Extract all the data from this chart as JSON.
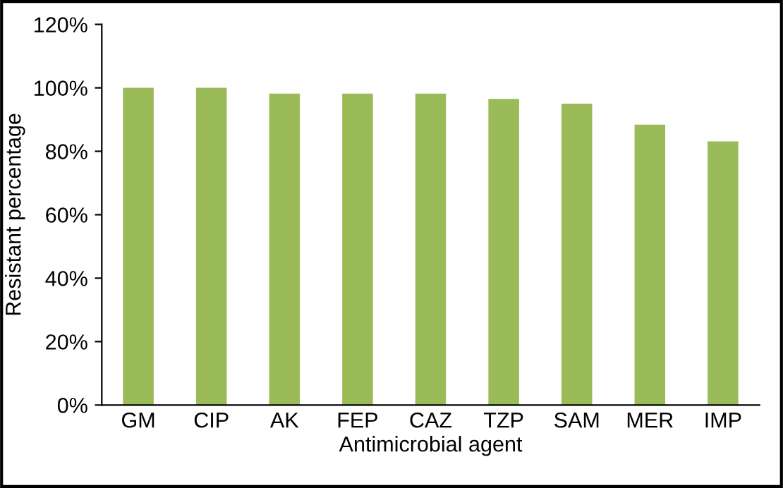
{
  "chart_data": {
    "type": "bar",
    "xlabel": "Antimicrobial agent",
    "ylabel": "Resistant percentage",
    "categories": [
      "GM",
      "CIP",
      "AK",
      "FEP",
      "CAZ",
      "TZP",
      "SAM",
      "MER",
      "IMP"
    ],
    "values": [
      100,
      100,
      98.2,
      98.2,
      98.2,
      96.5,
      95,
      88.4,
      83.1
    ],
    "color": "#9bbb59",
    "ylim": [
      0,
      120
    ],
    "yticks": [
      {
        "value": 0,
        "label": "0%"
      },
      {
        "value": 20,
        "label": "20%"
      },
      {
        "value": 40,
        "label": "40%"
      },
      {
        "value": 60,
        "label": "60%"
      },
      {
        "value": 80,
        "label": "80%"
      },
      {
        "value": 100,
        "label": "100%"
      },
      {
        "value": 120,
        "label": "120%"
      }
    ],
    "grid": false,
    "legend": false
  }
}
